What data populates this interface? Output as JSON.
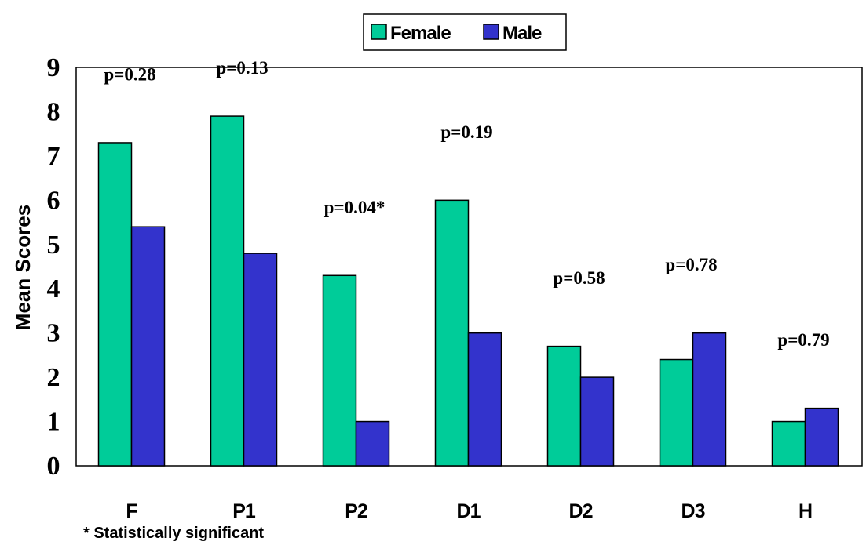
{
  "chart_data": {
    "type": "bar",
    "categories": [
      "F",
      "P1",
      "P2",
      "D1",
      "D2",
      "D3",
      "H"
    ],
    "series": [
      {
        "name": "Female",
        "color": "#00cc99",
        "values": [
          7.3,
          7.9,
          4.3,
          6.0,
          2.7,
          2.4,
          1.0
        ]
      },
      {
        "name": "Male",
        "color": "#3333cc",
        "values": [
          5.4,
          4.8,
          1.0,
          3.0,
          2.0,
          3.0,
          1.3
        ]
      }
    ],
    "annotations": [
      "p=0.28",
      "p=0.13",
      "p=0.04*",
      "p=0.19",
      "p=0.58",
      "p=0.78",
      "p=0.79"
    ],
    "ylabel": "Mean Scores",
    "xlabel": "",
    "ylim": [
      0,
      9
    ],
    "yticks": [
      "0",
      "1",
      "2",
      "3",
      "4",
      "5",
      "6",
      "7",
      "8",
      "9"
    ],
    "legend_position": "top-center",
    "grid": false,
    "footnote": "* Statistically significant"
  }
}
